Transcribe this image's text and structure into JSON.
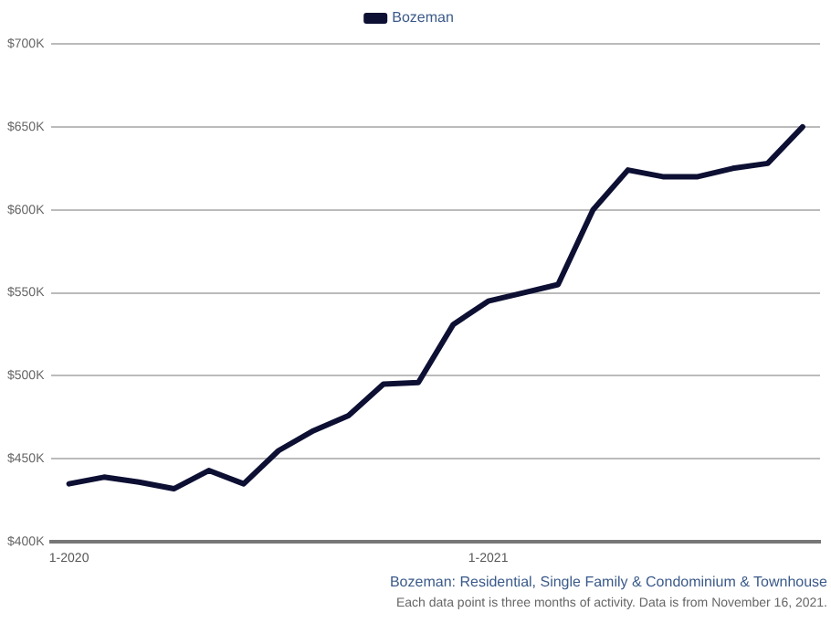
{
  "chart_data": {
    "type": "line",
    "categories": [
      "1-2020",
      null,
      null,
      null,
      null,
      null,
      null,
      null,
      null,
      null,
      null,
      null,
      "1-2021",
      null,
      null,
      null,
      null,
      null,
      null,
      null,
      null,
      null
    ],
    "series": [
      {
        "name": "Bozeman",
        "color": "#0d1033",
        "values": [
          435000,
          439000,
          436000,
          432000,
          443000,
          435000,
          455000,
          467000,
          476000,
          495000,
          496000,
          531000,
          545000,
          550000,
          555000,
          600000,
          624000,
          620000,
          620000,
          625000,
          628000,
          650000
        ]
      }
    ],
    "ylim": [
      400000,
      700000
    ],
    "yticks": [
      {
        "value": 400000,
        "label": "$400K"
      },
      {
        "value": 450000,
        "label": "$450K"
      },
      {
        "value": 500000,
        "label": "$500K"
      },
      {
        "value": 550000,
        "label": "$550K"
      },
      {
        "value": 600000,
        "label": "$600K"
      },
      {
        "value": 650000,
        "label": "$650K"
      },
      {
        "value": 700000,
        "label": "$700K"
      }
    ],
    "grid": "y",
    "legend": "top",
    "marker": "none",
    "line_style": "solid",
    "annotations": [
      "Bozeman: Residential, Single Family & Condominium & Townhouse",
      "Each data point is three months of activity. Data is from November 16, 2021."
    ]
  }
}
